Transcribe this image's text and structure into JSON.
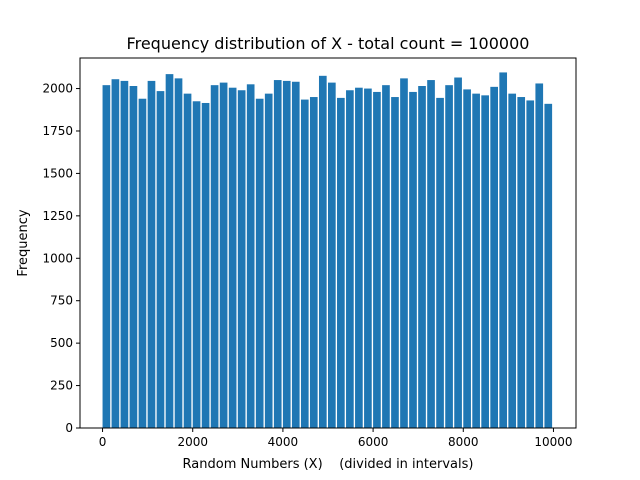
{
  "chart_data": {
    "type": "bar",
    "title": "Frequency distribution of X - total count = 100000",
    "xlabel": "Random Numbers (X)    (divided in intervals)",
    "ylabel": "Frequency",
    "xlim": [
      -500,
      10500
    ],
    "ylim": [
      0,
      2180
    ],
    "bin_width": 200,
    "bar_width": 170,
    "bar_color": "#1f77b4",
    "grid": false,
    "x_ticks": [
      0,
      2000,
      4000,
      6000,
      8000,
      10000
    ],
    "y_ticks": [
      0,
      250,
      500,
      750,
      1000,
      1250,
      1500,
      1750,
      2000
    ],
    "bins_start": [
      0,
      200,
      400,
      600,
      800,
      1000,
      1200,
      1400,
      1600,
      1800,
      2000,
      2200,
      2400,
      2600,
      2800,
      3000,
      3200,
      3400,
      3600,
      3800,
      4000,
      4200,
      4400,
      4600,
      4800,
      5000,
      5200,
      5400,
      5600,
      5800,
      6000,
      6200,
      6400,
      6600,
      6800,
      7000,
      7200,
      7400,
      7600,
      7800,
      8000,
      8200,
      8400,
      8600,
      8800,
      9000,
      9200,
      9400,
      9600,
      9800
    ],
    "values": [
      2020,
      2055,
      2045,
      2015,
      1940,
      2045,
      1985,
      2085,
      2060,
      1970,
      1925,
      1915,
      2020,
      2035,
      2005,
      1990,
      2025,
      1940,
      1970,
      2050,
      2045,
      2040,
      1935,
      1950,
      2075,
      2035,
      1945,
      1990,
      2005,
      2000,
      1980,
      2020,
      1950,
      2060,
      1980,
      2015,
      2050,
      1945,
      2020,
      2065,
      1995,
      1970,
      1960,
      2010,
      2095,
      1970,
      1950,
      1930,
      2030,
      1910
    ]
  }
}
